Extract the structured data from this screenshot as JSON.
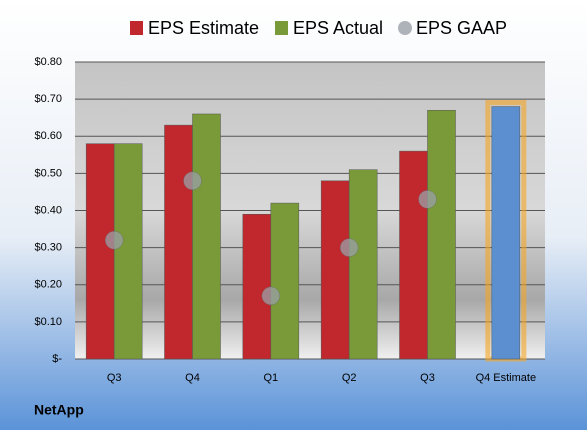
{
  "chart_data": {
    "type": "bar",
    "categories": [
      "Q3",
      "Q4",
      "Q1",
      "Q2",
      "Q3",
      "Q4 Estimate"
    ],
    "series": [
      {
        "name": "EPS Estimate",
        "color": "#c0282d",
        "colors": [
          "#c0282d",
          "#c0282d",
          "#c0282d",
          "#c0282d",
          "#c0282d",
          "#5b8fd0"
        ],
        "values": [
          0.58,
          0.63,
          0.39,
          0.48,
          0.56,
          0.68
        ]
      },
      {
        "name": "EPS Actual",
        "color": "#7a9a3a",
        "values": [
          0.58,
          0.66,
          0.42,
          0.51,
          0.67,
          null
        ]
      },
      {
        "name": "EPS GAAP",
        "color": "#9aa0a8",
        "marker": "circle",
        "values": [
          0.32,
          0.48,
          0.17,
          0.3,
          0.43,
          null
        ]
      }
    ],
    "ylim": [
      0,
      0.8
    ],
    "yticks": [
      {
        "value": 0,
        "label": "$-"
      },
      {
        "value": 0.1,
        "label": "$0.10"
      },
      {
        "value": 0.2,
        "label": "$0.20"
      },
      {
        "value": 0.3,
        "label": "$0.30"
      },
      {
        "value": 0.4,
        "label": "$0.40"
      },
      {
        "value": 0.5,
        "label": "$0.50"
      },
      {
        "value": 0.6,
        "label": "$0.60"
      },
      {
        "value": 0.7,
        "label": "$0.70"
      },
      {
        "value": 0.8,
        "label": "$0.80"
      }
    ],
    "grid": true,
    "legend": "top",
    "footer": "NetApp"
  }
}
